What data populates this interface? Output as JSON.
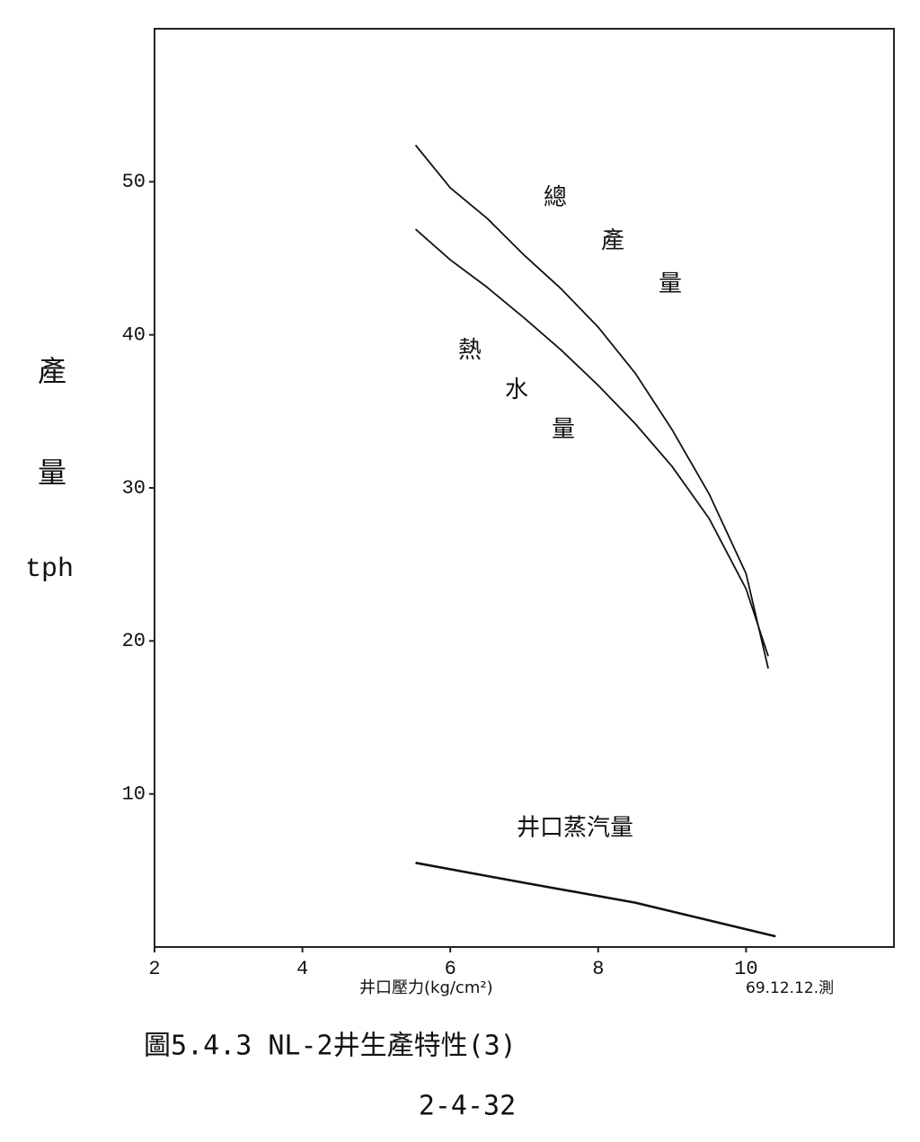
{
  "chart_data": {
    "type": "line",
    "y_label": [
      "產",
      "量",
      "tph"
    ],
    "x_label": "井口壓力(kg/cm²)",
    "note": "69.12.12.測",
    "caption": "圖5.4.3 NL-2井生產特性(3)",
    "page_number": "2-4-32",
    "xlim": [
      2,
      12
    ],
    "xticks": [
      2,
      4,
      6,
      8,
      10
    ],
    "ylim": [
      0,
      60
    ],
    "yticks": [
      10,
      20,
      30,
      40,
      50
    ],
    "series": [
      {
        "name": "總產量",
        "color": "#111111",
        "x": [
          5.53,
          6,
          6.5,
          7,
          7.5,
          8,
          8.5,
          9,
          9.5,
          10,
          10.3
        ],
        "values": [
          52.4,
          49.6,
          47.6,
          45.2,
          43,
          40.5,
          37.5,
          33.8,
          29.6,
          24.4,
          18.2
        ]
      },
      {
        "name": "熱水量",
        "color": "#111111",
        "x": [
          5.53,
          6,
          6.5,
          7,
          7.5,
          8,
          8.5,
          9,
          9.5,
          10,
          10.3
        ],
        "values": [
          46.9,
          44.9,
          43.1,
          41.1,
          39,
          36.7,
          34.2,
          31.4,
          28,
          23.4,
          19
        ]
      },
      {
        "name": "井口蒸汽量",
        "color": "#111111",
        "x": [
          5.53,
          7,
          8.5,
          10.4
        ],
        "values": [
          5.5,
          4.2,
          2.9,
          0.7
        ]
      }
    ]
  }
}
